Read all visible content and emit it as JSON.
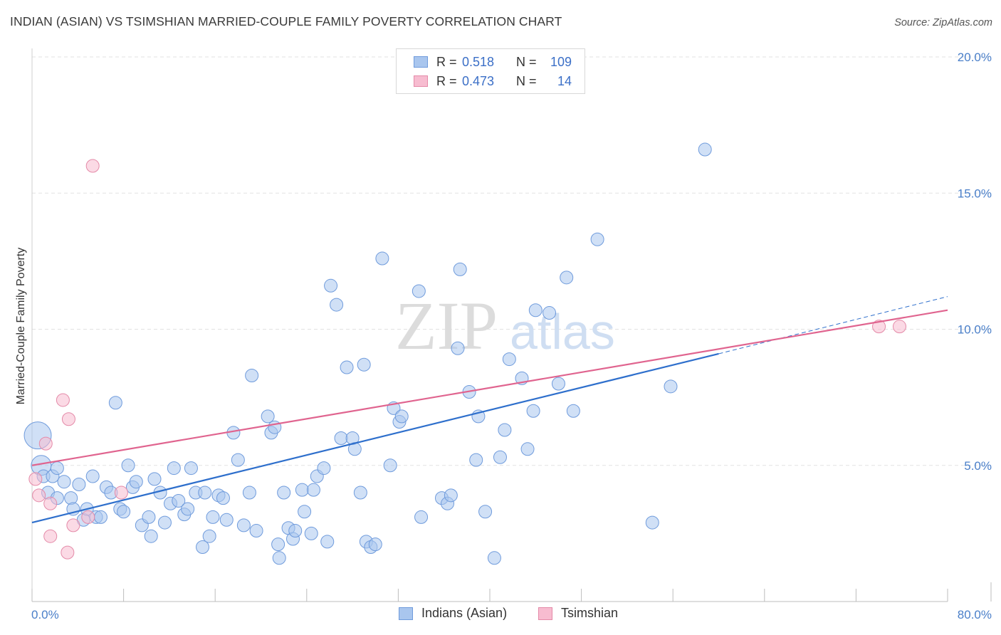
{
  "header": {
    "title": "INDIAN (ASIAN) VS TSIMSHIAN MARRIED-COUPLE FAMILY POVERTY CORRELATION CHART",
    "source": "Source: ZipAtlas.com"
  },
  "watermark": {
    "zip": "ZIP",
    "atlas": "atlas"
  },
  "legend": {
    "rows": [
      {
        "r_label": "R =",
        "r_value": "0.518",
        "n_label": "N =",
        "n_value": "109",
        "color": "#a9c6ee",
        "border": "#6f9bdc"
      },
      {
        "r_label": "R =",
        "r_value": "0.473",
        "n_label": "N =",
        "n_value": "14",
        "color": "#f7bcd0",
        "border": "#e48aa8"
      }
    ]
  },
  "bottom_legend": {
    "series_a": "Indians (Asian)",
    "series_b": "Tsimshian"
  },
  "colors": {
    "blue_fill": "#a9c6ee",
    "blue_stroke": "#6f9bdc",
    "blue_line": "#2e6fcc",
    "pink_fill": "#f7bcd0",
    "pink_stroke": "#e48aa8",
    "pink_line": "#e0648f",
    "grid": "#e2e2e2",
    "tick_text": "#4a7fc9"
  },
  "chart_data": {
    "type": "scatter",
    "title": "INDIAN (ASIAN) VS TSIMSHIAN MARRIED-COUPLE FAMILY POVERTY CORRELATION CHART",
    "xlabel": "",
    "ylabel": "Married-Couple Family Poverty",
    "xlim": [
      0,
      80
    ],
    "ylim": [
      0,
      20
    ],
    "x_tick_labels": [
      "0.0%",
      "80.0%"
    ],
    "y_ticks": [
      5,
      10,
      15,
      20
    ],
    "y_tick_labels": [
      "5.0%",
      "10.0%",
      "15.0%",
      "20.0%"
    ],
    "grid": true,
    "series": [
      {
        "name": "Indians (Asian)",
        "R": 0.518,
        "N": 109,
        "trendline": {
          "x": [
            0,
            60
          ],
          "y": [
            2.9,
            9.1
          ],
          "dashed_extension": {
            "x": [
              60,
              80
            ],
            "y": [
              9.1,
              11.2
            ]
          }
        },
        "points": [
          [
            0.5,
            6.1
          ],
          [
            0.8,
            5.0
          ],
          [
            1.0,
            4.6
          ],
          [
            1.4,
            4.0
          ],
          [
            1.8,
            4.6
          ],
          [
            2.2,
            4.9
          ],
          [
            2.2,
            3.8
          ],
          [
            2.8,
            4.4
          ],
          [
            3.4,
            3.8
          ],
          [
            3.6,
            3.4
          ],
          [
            4.1,
            4.3
          ],
          [
            4.5,
            3.0
          ],
          [
            4.8,
            3.4
          ],
          [
            5.3,
            4.6
          ],
          [
            5.6,
            3.1
          ],
          [
            6.0,
            3.1
          ],
          [
            6.5,
            4.2
          ],
          [
            6.9,
            4.0
          ],
          [
            7.3,
            7.3
          ],
          [
            7.7,
            3.4
          ],
          [
            8.0,
            3.3
          ],
          [
            8.4,
            5.0
          ],
          [
            8.8,
            4.2
          ],
          [
            9.1,
            4.4
          ],
          [
            9.6,
            2.8
          ],
          [
            10.2,
            3.1
          ],
          [
            10.4,
            2.4
          ],
          [
            10.7,
            4.5
          ],
          [
            11.2,
            4.0
          ],
          [
            11.6,
            2.9
          ],
          [
            12.1,
            3.6
          ],
          [
            12.4,
            4.9
          ],
          [
            12.8,
            3.7
          ],
          [
            13.3,
            3.2
          ],
          [
            13.6,
            3.4
          ],
          [
            13.9,
            4.9
          ],
          [
            14.3,
            4.0
          ],
          [
            14.9,
            2.0
          ],
          [
            15.1,
            4.0
          ],
          [
            15.5,
            2.4
          ],
          [
            15.8,
            3.1
          ],
          [
            16.3,
            3.9
          ],
          [
            16.7,
            3.8
          ],
          [
            17.0,
            3.0
          ],
          [
            17.6,
            6.2
          ],
          [
            18.0,
            5.2
          ],
          [
            18.5,
            2.8
          ],
          [
            19.0,
            4.0
          ],
          [
            19.2,
            8.3
          ],
          [
            19.6,
            2.6
          ],
          [
            20.6,
            6.8
          ],
          [
            20.9,
            6.2
          ],
          [
            21.2,
            6.4
          ],
          [
            21.5,
            2.1
          ],
          [
            21.6,
            1.6
          ],
          [
            22.0,
            4.0
          ],
          [
            22.4,
            2.7
          ],
          [
            22.8,
            2.3
          ],
          [
            23.0,
            2.6
          ],
          [
            23.6,
            4.1
          ],
          [
            23.8,
            3.3
          ],
          [
            24.4,
            2.5
          ],
          [
            24.6,
            4.1
          ],
          [
            24.9,
            4.6
          ],
          [
            25.5,
            4.9
          ],
          [
            25.8,
            2.2
          ],
          [
            26.1,
            11.6
          ],
          [
            26.6,
            10.9
          ],
          [
            27.0,
            6.0
          ],
          [
            27.5,
            8.6
          ],
          [
            28.0,
            6.0
          ],
          [
            28.2,
            5.6
          ],
          [
            28.7,
            4.0
          ],
          [
            29.0,
            8.7
          ],
          [
            29.2,
            2.2
          ],
          [
            29.6,
            2.0
          ],
          [
            30.0,
            2.1
          ],
          [
            30.6,
            12.6
          ],
          [
            31.3,
            5.0
          ],
          [
            31.6,
            7.1
          ],
          [
            32.1,
            6.6
          ],
          [
            32.3,
            6.8
          ],
          [
            33.8,
            11.4
          ],
          [
            34.0,
            3.1
          ],
          [
            35.8,
            3.8
          ],
          [
            36.3,
            3.6
          ],
          [
            36.6,
            3.9
          ],
          [
            37.2,
            9.3
          ],
          [
            37.4,
            12.2
          ],
          [
            38.2,
            7.7
          ],
          [
            38.8,
            5.2
          ],
          [
            39.0,
            6.8
          ],
          [
            39.6,
            3.3
          ],
          [
            40.4,
            1.6
          ],
          [
            40.9,
            5.3
          ],
          [
            41.3,
            6.3
          ],
          [
            41.7,
            8.9
          ],
          [
            42.8,
            8.2
          ],
          [
            43.3,
            5.6
          ],
          [
            43.8,
            7.0
          ],
          [
            44.0,
            10.7
          ],
          [
            45.2,
            10.6
          ],
          [
            46.0,
            8.0
          ],
          [
            46.7,
            11.9
          ],
          [
            47.3,
            7.0
          ],
          [
            49.4,
            13.3
          ],
          [
            54.2,
            2.9
          ],
          [
            55.8,
            7.9
          ],
          [
            58.8,
            16.6
          ]
        ]
      },
      {
        "name": "Tsimshian",
        "R": 0.473,
        "N": 14,
        "trendline": {
          "x": [
            0,
            80
          ],
          "y": [
            5.0,
            10.7
          ]
        },
        "points": [
          [
            0.3,
            4.5
          ],
          [
            0.6,
            3.9
          ],
          [
            1.2,
            5.8
          ],
          [
            1.6,
            3.6
          ],
          [
            1.6,
            2.4
          ],
          [
            2.7,
            7.4
          ],
          [
            3.1,
            1.8
          ],
          [
            3.2,
            6.7
          ],
          [
            3.6,
            2.8
          ],
          [
            4.9,
            3.1
          ],
          [
            5.3,
            16.0
          ],
          [
            7.8,
            4.0
          ],
          [
            74.0,
            10.1
          ],
          [
            75.8,
            10.1
          ]
        ]
      }
    ]
  }
}
